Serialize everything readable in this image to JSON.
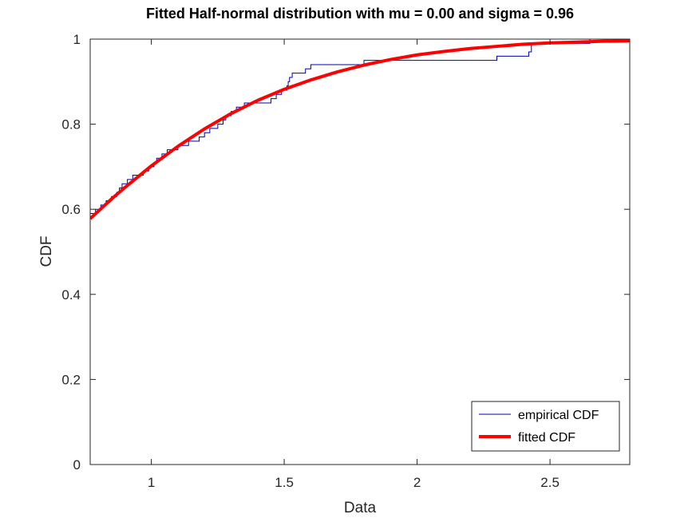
{
  "chart_data": {
    "type": "line",
    "title": "Fitted Half-normal distribution with mu = 0.00 and sigma = 0.96",
    "xlabel": "Data",
    "ylabel": "CDF",
    "xlim": [
      0.77,
      2.8
    ],
    "ylim": [
      0,
      1
    ],
    "xticks": [
      1,
      1.5,
      2,
      2.5
    ],
    "yticks": [
      0,
      0.2,
      0.4,
      0.6,
      0.8,
      1
    ],
    "xtick_labels": [
      "1",
      "1.5",
      "2",
      "2.5"
    ],
    "ytick_labels": [
      "0",
      "0.2",
      "0.4",
      "0.6",
      "0.8",
      "1"
    ],
    "grid": false,
    "legend_position": "bottom-right",
    "fit_params": {
      "mu": 0.0,
      "sigma": 0.96
    },
    "series": [
      {
        "name": "empirical CDF",
        "color": "#0000aa",
        "style": "stairs",
        "x": [
          0.77,
          0.79,
          0.81,
          0.82,
          0.83,
          0.84,
          0.85,
          0.86,
          0.87,
          0.88,
          0.89,
          0.91,
          0.93,
          0.95,
          0.97,
          0.99,
          1.01,
          1.02,
          1.04,
          1.06,
          1.1,
          1.14,
          1.18,
          1.2,
          1.22,
          1.25,
          1.27,
          1.28,
          1.3,
          1.32,
          1.35,
          1.4,
          1.45,
          1.47,
          1.49,
          1.51,
          1.515,
          1.52,
          1.53,
          1.55,
          1.58,
          1.6,
          1.63,
          1.8,
          2.08,
          2.3,
          2.42,
          2.43,
          2.65,
          2.8
        ],
        "y": [
          0.59,
          0.6,
          0.61,
          0.61,
          0.62,
          0.62,
          0.63,
          0.63,
          0.64,
          0.65,
          0.66,
          0.67,
          0.68,
          0.68,
          0.69,
          0.7,
          0.71,
          0.72,
          0.73,
          0.74,
          0.75,
          0.76,
          0.77,
          0.78,
          0.79,
          0.8,
          0.81,
          0.82,
          0.83,
          0.84,
          0.85,
          0.85,
          0.86,
          0.87,
          0.88,
          0.89,
          0.9,
          0.91,
          0.92,
          0.92,
          0.93,
          0.94,
          0.94,
          0.95,
          0.95,
          0.96,
          0.97,
          0.99,
          1.0,
          1.0
        ]
      },
      {
        "name": "fitted CDF",
        "color": "#ff0000",
        "style": "curve",
        "x": [
          0.77,
          0.85,
          0.9,
          1.0,
          1.1,
          1.2,
          1.3,
          1.4,
          1.5,
          1.6,
          1.7,
          1.8,
          1.9,
          2.0,
          2.1,
          2.2,
          2.3,
          2.4,
          2.5,
          2.6,
          2.7,
          2.8
        ],
        "y": [
          0.578,
          0.624,
          0.651,
          0.702,
          0.748,
          0.789,
          0.825,
          0.856,
          0.882,
          0.904,
          0.923,
          0.939,
          0.952,
          0.963,
          0.971,
          0.978,
          0.983,
          0.988,
          0.991,
          0.993,
          0.995,
          0.996
        ]
      }
    ]
  }
}
